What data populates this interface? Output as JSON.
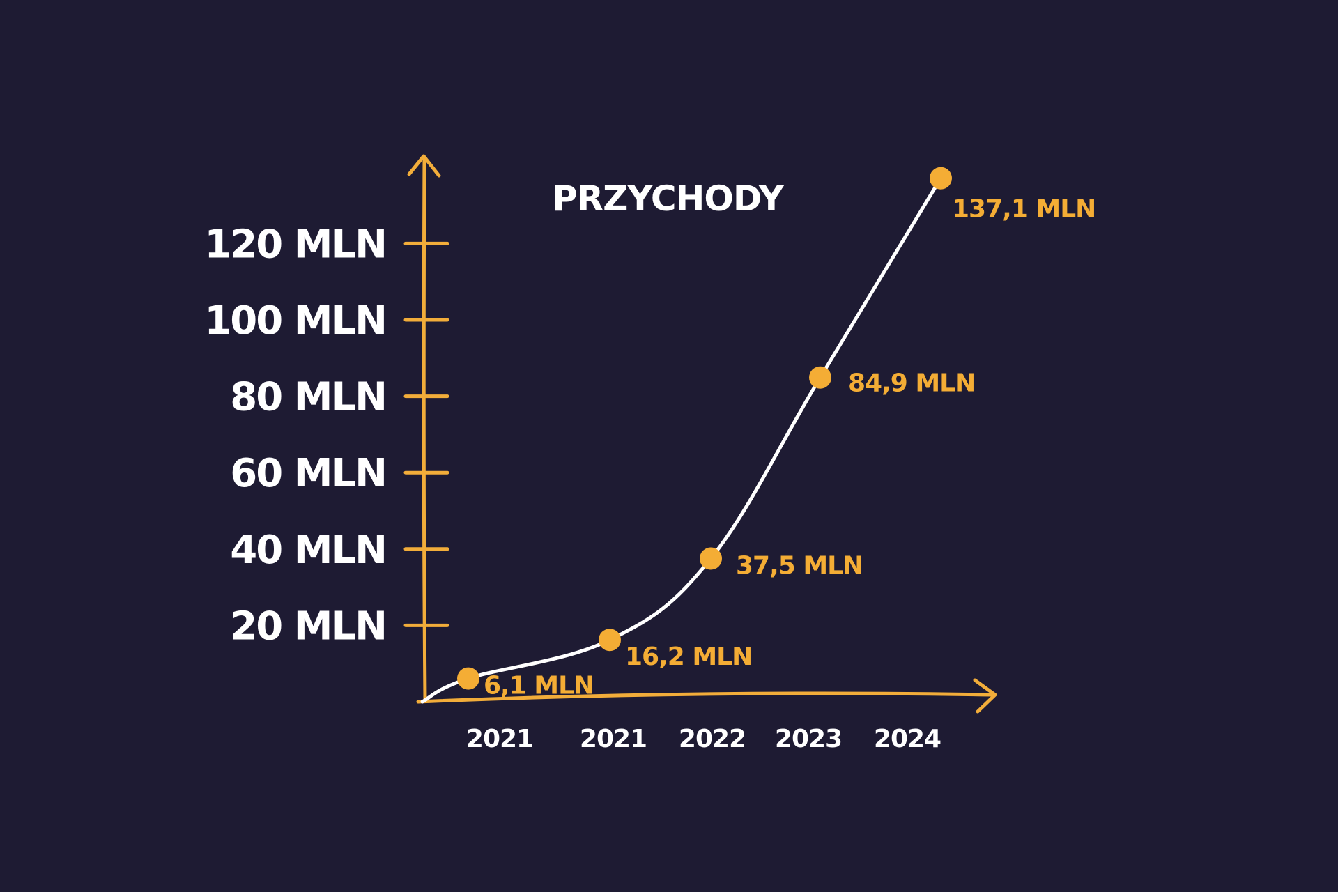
{
  "colors": {
    "background": "#1e1b33",
    "axis": "#f2ad3a",
    "line": "#ffffff",
    "point": "#f4ad35",
    "text": "#ffffff",
    "data_label": "#f4ad35"
  },
  "chart_data": {
    "type": "line",
    "title": "PRZYCHODY",
    "xlabel": "",
    "ylabel": "",
    "categories": [
      "2021",
      "2021",
      "2022",
      "2023",
      "2024"
    ],
    "yticks": [
      {
        "value": 20,
        "label": "20 MLN"
      },
      {
        "value": 40,
        "label": "40 MLN"
      },
      {
        "value": 60,
        "label": "60 MLN"
      },
      {
        "value": 80,
        "label": "80 MLN"
      },
      {
        "value": 100,
        "label": "100 MLN"
      },
      {
        "value": 120,
        "label": "120 MLN"
      }
    ],
    "ylim": [
      0,
      137.1
    ],
    "grid": false,
    "legend": "none",
    "series": [
      {
        "values": [
          6.1,
          16.2,
          37.5,
          84.9,
          137.1
        ],
        "labels": [
          "6,1 MLN",
          "16,2 MLN",
          "37,5 MLN",
          "84,9 MLN",
          "137,1 MLN"
        ]
      }
    ]
  }
}
